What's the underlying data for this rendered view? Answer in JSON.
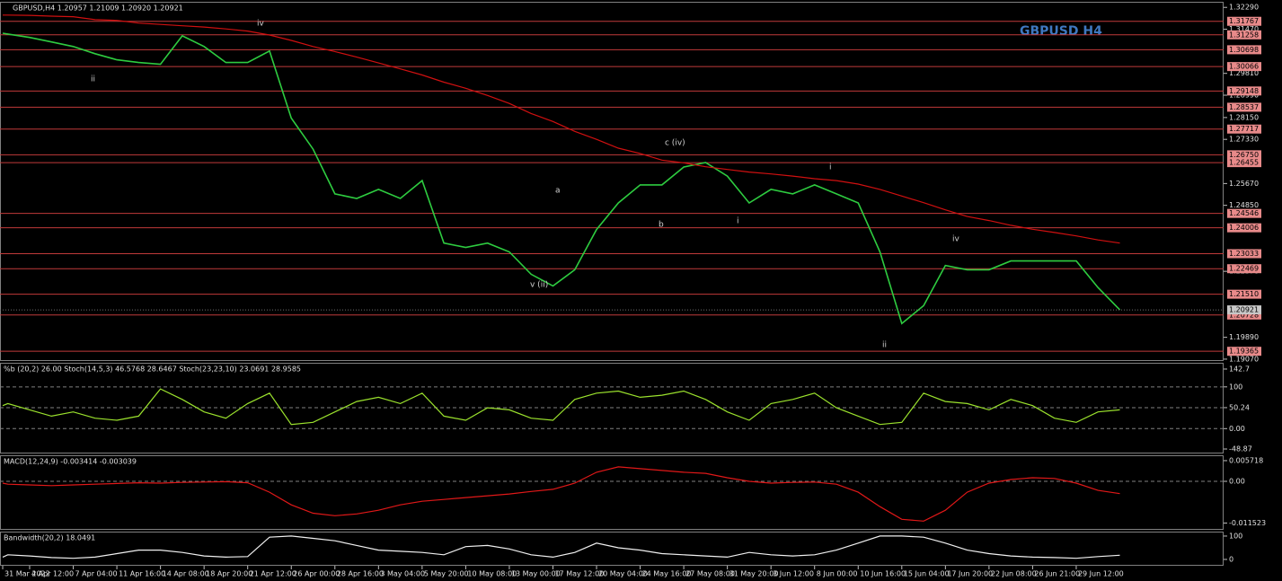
{
  "chart_data": [
    {
      "type": "line",
      "title": "GBPUSD,H4  1.20957 1.21009 1.20920 1.20921",
      "watermark": "GBPUSD H4",
      "categories": [
        "31 Mar 2022",
        null,
        "4 Apr 12:00",
        null,
        "7 Apr 04:00",
        null,
        "11 Apr 16:00",
        null,
        "14 Apr 08:00",
        null,
        "18 Apr 20:00",
        null,
        "21 Apr 12:00",
        null,
        "26 Apr 00:00",
        null,
        "28 Apr 16:00",
        null,
        "3 May 04:00",
        null,
        "5 May 20:00",
        null,
        "10 May 08:00",
        null,
        "13 May 00:00",
        null,
        "17 May 12:00",
        null,
        "20 May 04:00",
        null,
        "24 May 16:00",
        null,
        "27 May 08:00",
        null,
        "31 May 20:00",
        null,
        "3 Jun 12:00",
        null,
        "8 Jun 00:00",
        null,
        "10 Jun 16:00",
        null,
        "15 Jun 04:00",
        null,
        "17 Jun 20:00",
        null,
        "22 Jun 08:00",
        null,
        "26 Jun 21:00",
        null,
        "29 Jun 12:00",
        null,
        null
      ],
      "series": [
        {
          "color": "#2ecc40",
          "values": [
            1.3132,
            1.3129,
            1.3116,
            1.3099,
            1.3082,
            1.3055,
            1.3032,
            1.3022,
            1.3015,
            1.3122,
            1.3082,
            1.3022,
            1.3022,
            1.3065,
            1.2813,
            1.2696,
            1.2528,
            1.2511,
            1.2545,
            1.2511,
            1.2578,
            1.2343,
            1.2327,
            1.2343,
            1.231,
            1.2226,
            1.2182,
            1.2243,
            1.2394,
            1.2494,
            1.2562,
            1.2562,
            1.2629,
            1.2646,
            1.2595,
            1.2494,
            1.2545,
            1.2528,
            1.2562,
            1.2528,
            1.2494,
            1.231,
            1.2041,
            1.2108,
            1.2259,
            1.2243,
            1.2243,
            1.2276,
            1.2276,
            1.2276,
            1.2276,
            1.2176,
            1.20921
          ]
        },
        {
          "color": "#d01010",
          "values": [
            1.32,
            1.32,
            1.3199,
            1.3196,
            1.3194,
            1.3183,
            1.318,
            1.317,
            1.3165,
            1.316,
            1.3155,
            1.3148,
            1.314,
            1.3125,
            1.3105,
            1.3082,
            1.3063,
            1.3042,
            1.302,
            1.2998,
            1.2975,
            1.2948,
            1.2925,
            1.2898,
            1.2868,
            1.283,
            1.28,
            1.2763,
            1.2733,
            1.27,
            1.268,
            1.2655,
            1.2645,
            1.263,
            1.262,
            1.261,
            1.2603,
            1.2595,
            1.2585,
            1.2578,
            1.2565,
            1.2545,
            1.252,
            1.2495,
            1.2468,
            1.2443,
            1.2428,
            1.241,
            1.2395,
            1.2383,
            1.237,
            1.2355,
            1.2343
          ]
        }
      ],
      "ylim": [
        1.19,
        1.325
      ],
      "yticks": [
        {
          "value": 1.3229,
          "label": "1.32290"
        },
        {
          "value": 1.3147,
          "label": "1.31470"
        },
        {
          "value": 1.2981,
          "label": "1.29810"
        },
        {
          "value": 1.2899,
          "label": "1.28990"
        },
        {
          "value": 1.2815,
          "label": "1.28150"
        },
        {
          "value": 1.2733,
          "label": "1.27330"
        },
        {
          "value": 1.2567,
          "label": "1.25670"
        },
        {
          "value": 1.2485,
          "label": "1.24850"
        },
        {
          "value": 1.2237,
          "label": "1.22370"
        },
        {
          "value": 1.1989,
          "label": "1.19890"
        },
        {
          "value": 1.1907,
          "label": "1.19070"
        }
      ],
      "levels": [
        {
          "value": 1.31767,
          "label": "1.31767"
        },
        {
          "value": 1.31258,
          "label": "1.31258"
        },
        {
          "value": 1.30698,
          "label": "1.30698"
        },
        {
          "value": 1.30066,
          "label": "1.30066"
        },
        {
          "value": 1.29148,
          "label": "1.29148"
        },
        {
          "value": 1.28537,
          "label": "1.28537"
        },
        {
          "value": 1.27717,
          "label": "1.27717"
        },
        {
          "value": 1.2675,
          "label": "1.26750"
        },
        {
          "value": 1.26455,
          "label": "1.26455"
        },
        {
          "value": 1.24546,
          "label": "1.24546"
        },
        {
          "value": 1.24006,
          "label": "1.24006"
        },
        {
          "value": 1.23033,
          "label": "1.23033"
        },
        {
          "value": 1.22469,
          "label": "1.22469"
        },
        {
          "value": 1.2151,
          "label": "1.21510"
        },
        {
          "value": 1.20728,
          "label": "1.20728"
        },
        {
          "value": 1.19365,
          "label": "1.19365"
        }
      ],
      "current_price": {
        "value": 1.20921,
        "label": "1.20921"
      },
      "annotations": [
        "iv",
        "ii",
        "c  (iv)",
        "a",
        "b",
        "v  (ii)",
        "i",
        "i",
        "ii",
        "iv"
      ]
    },
    {
      "type": "line",
      "title": "%b (20,2) 26.00  Stoch(14,5,3) 46.5768 28.6467  Stoch(23,23,10) 23.0691 28.9585",
      "series": [
        {
          "color": "#9be22d",
          "values": [
            55,
            60,
            45,
            30,
            40,
            25,
            20,
            30,
            95,
            70,
            40,
            25,
            60,
            85,
            10,
            15,
            40,
            65,
            75,
            60,
            85,
            30,
            20,
            50,
            45,
            25,
            20,
            70,
            85,
            90,
            75,
            80,
            90,
            70,
            40,
            20,
            60,
            70,
            85,
            50,
            30,
            10,
            15,
            85,
            65,
            60,
            45,
            70,
            55,
            25,
            15,
            40,
            45
          ]
        }
      ],
      "ylim": [
        -59.6,
        157.7
      ],
      "yticks": [
        142.7,
        100,
        50.24,
        {
          "value": 0,
          "label": "0.00"
        },
        -48.87
      ]
    },
    {
      "type": "line",
      "title": "MACD(12,24,9) -0.003414 -0.003039",
      "series": [
        {
          "color": "#e01818",
          "values": [
            -0.0005,
            -0.0008,
            -0.001,
            -0.0012,
            -0.001,
            -0.0008,
            -0.0006,
            -0.0004,
            -0.0005,
            -0.0003,
            -0.0002,
            -0.0001,
            -0.0004,
            -0.003,
            -0.0065,
            -0.0088,
            -0.0095,
            -0.009,
            -0.008,
            -0.0065,
            -0.0055,
            -0.005,
            -0.0045,
            -0.004,
            -0.0035,
            -0.0028,
            -0.0022,
            -0.0005,
            0.0025,
            0.004,
            0.0035,
            0.003,
            0.0025,
            0.0022,
            0.001,
            0,
            -0.0005,
            -0.0003,
            -0.0002,
            -0.0008,
            -0.003,
            -0.007,
            -0.0105,
            -0.011,
            -0.008,
            -0.003,
            -0.0005,
            0.0005,
            0.001,
            0.0008,
            -0.0005,
            -0.0025,
            -0.0034
          ]
        }
      ],
      "ylim": [
        -0.0134,
        0.0072
      ],
      "yticks": [
        0.005718,
        {
          "value": 0,
          "label": "0.00"
        },
        -0.011523
      ]
    },
    {
      "type": "line",
      "title": "Bandwidth(20,2) 18.0491",
      "series": [
        {
          "color": "#f0f0f0",
          "values": [
            10,
            20,
            15,
            8,
            5,
            10,
            25,
            40,
            40,
            30,
            15,
            10,
            12,
            95,
            100,
            90,
            80,
            60,
            40,
            35,
            30,
            20,
            55,
            60,
            45,
            20,
            10,
            30,
            70,
            50,
            40,
            25,
            20,
            15,
            10,
            30,
            20,
            15,
            20,
            40,
            70,
            100,
            100,
            95,
            70,
            40,
            25,
            15,
            10,
            8,
            5,
            12,
            18
          ]
        }
      ],
      "ylim": [
        -27,
        119
      ],
      "yticks": [
        100,
        0
      ]
    }
  ]
}
